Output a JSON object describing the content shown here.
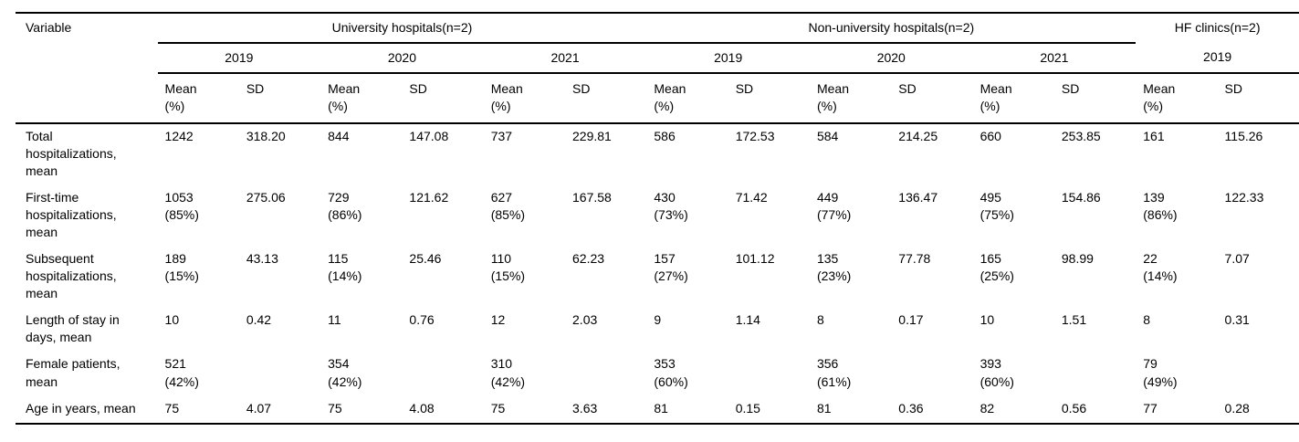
{
  "table": {
    "variable_header": "Variable",
    "groups": [
      {
        "label": "University hospitals(n=2)",
        "years": [
          "2019",
          "2020",
          "2021"
        ]
      },
      {
        "label": "Non-university hospitals(n=2)",
        "years": [
          "2019",
          "2020",
          "2021"
        ]
      },
      {
        "label": "HF clinics(n=2)",
        "years": [
          "2019"
        ]
      }
    ],
    "subheaders": {
      "mean": "Mean\n(%)",
      "sd": "SD"
    },
    "rows": [
      {
        "label": "Total hospitalizations, mean",
        "cells": [
          "1242",
          "318.20",
          "844",
          "147.08",
          "737",
          "229.81",
          "586",
          "172.53",
          "584",
          "214.25",
          "660",
          "253.85",
          "161",
          "115.26"
        ]
      },
      {
        "label": "First-time hospitalizations, mean",
        "cells": [
          "1053\n(85%)",
          "275.06",
          "729\n(86%)",
          "121.62",
          "627\n(85%)",
          "167.58",
          "430\n(73%)",
          "71.42",
          "449\n(77%)",
          "136.47",
          "495\n(75%)",
          "154.86",
          "139\n(86%)",
          "122.33"
        ]
      },
      {
        "label": "Subsequent hospitalizations, mean",
        "cells": [
          "189\n(15%)",
          "43.13",
          "115\n(14%)",
          "25.46",
          "110\n(15%)",
          "62.23",
          "157\n(27%)",
          "101.12",
          "135\n(23%)",
          "77.78",
          "165\n(25%)",
          "98.99",
          "22\n(14%)",
          "7.07"
        ]
      },
      {
        "label": "Length of stay in days, mean",
        "cells": [
          "10",
          "0.42",
          "11",
          "0.76",
          "12",
          "2.03",
          "9",
          "1.14",
          "8",
          "0.17",
          "10",
          "1.51",
          "8",
          "0.31"
        ]
      },
      {
        "label": "Female patients, mean",
        "cells": [
          "521\n(42%)",
          "",
          "354\n(42%)",
          "",
          "310\n(42%)",
          "",
          "353\n(60%)",
          "",
          "356\n(61%)",
          "",
          "393\n(60%)",
          "",
          "79\n(49%)",
          ""
        ]
      },
      {
        "label": "Age in years, mean",
        "cells": [
          "75",
          "4.07",
          "75",
          "4.08",
          "75",
          "3.63",
          "81",
          "0.15",
          "81",
          "0.36",
          "82",
          "0.56",
          "77",
          "0.28"
        ]
      }
    ]
  }
}
